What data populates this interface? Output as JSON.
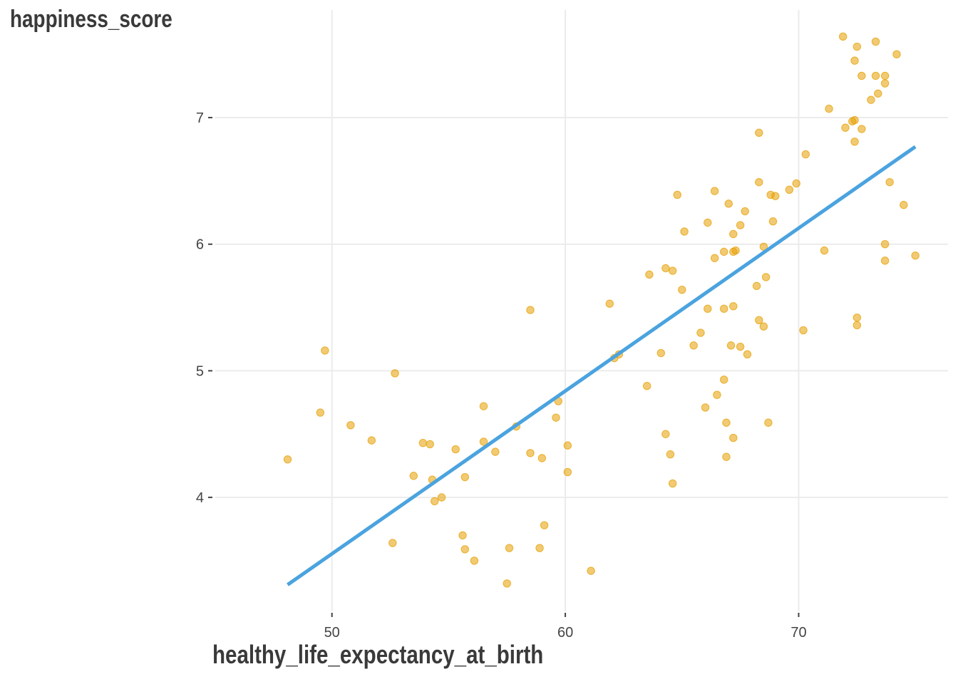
{
  "chart_data": {
    "type": "scatter",
    "xlabel": "healthy_life_expectancy_at_birth",
    "ylabel": "happiness_score",
    "xlim": [
      45.0,
      76.4
    ],
    "ylim": [
      3.1,
      7.85
    ],
    "x_ticks": [
      50,
      60,
      70
    ],
    "y_ticks": [
      4,
      5,
      6,
      7
    ],
    "grid": true,
    "colors": {
      "points": "#E69F00",
      "trend": "#4AA3DF",
      "grid": "#ebebeb"
    },
    "points": [
      [
        48.1,
        4.3
      ],
      [
        49.5,
        4.67
      ],
      [
        49.7,
        5.16
      ],
      [
        50.8,
        4.57
      ],
      [
        51.7,
        4.45
      ],
      [
        52.7,
        4.98
      ],
      [
        52.6,
        3.64
      ],
      [
        53.5,
        4.17
      ],
      [
        53.9,
        4.43
      ],
      [
        54.2,
        4.42
      ],
      [
        54.3,
        4.14
      ],
      [
        54.4,
        3.97
      ],
      [
        54.7,
        4.0
      ],
      [
        55.3,
        4.38
      ],
      [
        55.6,
        3.7
      ],
      [
        55.7,
        3.59
      ],
      [
        55.7,
        4.16
      ],
      [
        56.1,
        3.5
      ],
      [
        56.5,
        4.72
      ],
      [
        56.5,
        4.44
      ],
      [
        57.0,
        4.36
      ],
      [
        57.5,
        3.32
      ],
      [
        57.6,
        3.6
      ],
      [
        57.9,
        4.56
      ],
      [
        58.5,
        5.48
      ],
      [
        58.5,
        4.35
      ],
      [
        58.9,
        3.6
      ],
      [
        59.0,
        4.31
      ],
      [
        59.1,
        3.78
      ],
      [
        59.6,
        4.63
      ],
      [
        59.7,
        4.76
      ],
      [
        60.1,
        4.41
      ],
      [
        60.1,
        4.2
      ],
      [
        61.1,
        3.42
      ],
      [
        61.9,
        5.53
      ],
      [
        62.1,
        5.1
      ],
      [
        62.3,
        5.13
      ],
      [
        63.5,
        4.88
      ],
      [
        63.6,
        5.76
      ],
      [
        64.1,
        5.14
      ],
      [
        64.3,
        5.81
      ],
      [
        64.3,
        4.5
      ],
      [
        64.5,
        4.34
      ],
      [
        64.6,
        5.79
      ],
      [
        64.6,
        4.11
      ],
      [
        64.8,
        6.39
      ],
      [
        65.0,
        5.64
      ],
      [
        65.1,
        6.1
      ],
      [
        65.5,
        5.2
      ],
      [
        65.8,
        5.3
      ],
      [
        66.0,
        4.71
      ],
      [
        66.1,
        6.17
      ],
      [
        66.1,
        5.49
      ],
      [
        66.4,
        6.42
      ],
      [
        66.4,
        5.89
      ],
      [
        66.5,
        4.81
      ],
      [
        66.8,
        5.94
      ],
      [
        66.8,
        4.93
      ],
      [
        66.8,
        5.49
      ],
      [
        66.9,
        4.32
      ],
      [
        66.9,
        4.59
      ],
      [
        67.0,
        6.32
      ],
      [
        67.1,
        5.2
      ],
      [
        67.2,
        5.51
      ],
      [
        67.2,
        4.47
      ],
      [
        67.2,
        6.08
      ],
      [
        67.2,
        5.94
      ],
      [
        67.3,
        5.95
      ],
      [
        67.5,
        6.15
      ],
      [
        67.5,
        5.19
      ],
      [
        67.7,
        6.26
      ],
      [
        67.8,
        5.13
      ],
      [
        68.2,
        5.67
      ],
      [
        68.3,
        5.4
      ],
      [
        68.3,
        6.88
      ],
      [
        68.3,
        6.49
      ],
      [
        68.5,
        5.98
      ],
      [
        68.5,
        5.35
      ],
      [
        68.6,
        5.74
      ],
      [
        68.7,
        4.59
      ],
      [
        68.8,
        6.39
      ],
      [
        68.9,
        6.18
      ],
      [
        69.0,
        6.38
      ],
      [
        69.6,
        6.43
      ],
      [
        69.9,
        6.48
      ],
      [
        70.2,
        5.32
      ],
      [
        70.3,
        6.71
      ],
      [
        71.1,
        5.95
      ],
      [
        71.3,
        7.07
      ],
      [
        71.9,
        7.64
      ],
      [
        72.0,
        6.92
      ],
      [
        72.3,
        6.97
      ],
      [
        72.4,
        6.98
      ],
      [
        72.4,
        7.45
      ],
      [
        72.4,
        6.81
      ],
      [
        72.5,
        7.56
      ],
      [
        72.5,
        5.42
      ],
      [
        72.5,
        5.36
      ],
      [
        72.7,
        7.33
      ],
      [
        72.7,
        6.91
      ],
      [
        73.1,
        7.14
      ],
      [
        73.3,
        7.33
      ],
      [
        73.3,
        7.6
      ],
      [
        73.4,
        7.19
      ],
      [
        73.7,
        7.33
      ],
      [
        73.7,
        7.27
      ],
      [
        73.7,
        6.0
      ],
      [
        73.7,
        5.87
      ],
      [
        73.9,
        6.49
      ],
      [
        74.2,
        7.5
      ],
      [
        74.5,
        6.31
      ],
      [
        75.0,
        5.91
      ]
    ],
    "trend_line": {
      "x": [
        48.1,
        75.0
      ],
      "y": [
        3.31,
        6.77
      ]
    }
  }
}
